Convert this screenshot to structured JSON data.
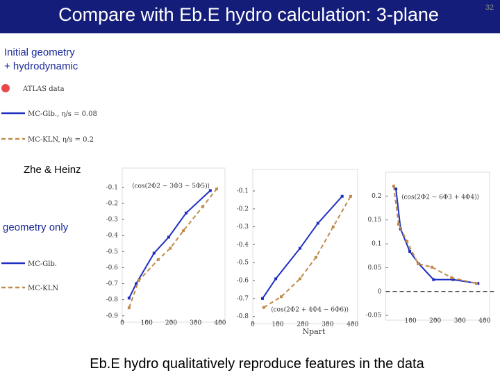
{
  "slide": {
    "title": "Compare with Eb.E hydro calculation: 3-plane",
    "page_number": "32",
    "hydro_label": [
      "Initial geometry",
      "+ hydrodynamic"
    ],
    "hydro_legend": [
      "ATLAS data",
      "MC-Glb., η/s = 0.08",
      "MC-KLN, η/s = 0.2"
    ],
    "reference": "Zhe & Heinz",
    "geometry_label": "geometry only",
    "geometry_legend": [
      "MC-Glb.",
      "MC-KLN"
    ],
    "x_label": "Npart",
    "conclusion": "Eb.E hydro qualitatively reproduce features in the data"
  },
  "chart_data": [
    {
      "type": "line",
      "annotation": "⟨cos(2Φ2 − 3Φ3 − 5Φ5)⟩",
      "xlim": [
        0,
        420
      ],
      "xticks": [
        0,
        100,
        200,
        300,
        400
      ],
      "ylim": [
        -0.94,
        0.02
      ],
      "yticks": [
        -0.1,
        -0.2,
        -0.3,
        -0.4,
        -0.5,
        -0.6,
        -0.7,
        -0.8,
        -0.9
      ],
      "series": [
        {
          "color": "#1f2fbf",
          "dashed": false,
          "x": [
            28,
            57,
            130,
            190,
            261,
            360
          ],
          "values": [
            -0.79,
            -0.7,
            -0.51,
            -0.41,
            -0.26,
            -0.12
          ]
        },
        {
          "color": "#c08a4a",
          "dashed": true,
          "x": [
            28,
            68,
            147,
            196,
            250,
            329,
            386
          ],
          "values": [
            -0.85,
            -0.68,
            -0.55,
            -0.48,
            -0.37,
            -0.22,
            -0.11
          ]
        }
      ]
    },
    {
      "type": "line",
      "annotation": "⟨cos(2Φ2 + 4Φ4 − 6Φ6)⟩",
      "xlim": [
        0,
        420
      ],
      "xticks": [
        0,
        100,
        200,
        300,
        400
      ],
      "ylim": [
        -0.84,
        0.02
      ],
      "yticks": [
        -0.1,
        -0.2,
        -0.3,
        -0.4,
        -0.5,
        -0.6,
        -0.7,
        -0.8
      ],
      "series": [
        {
          "color": "#1f2fbf",
          "dashed": false,
          "x": [
            39,
            92,
            189,
            261,
            358
          ],
          "values": [
            -0.7,
            -0.59,
            -0.42,
            -0.28,
            -0.13
          ]
        },
        {
          "color": "#c08a4a",
          "dashed": true,
          "x": [
            44,
            114,
            189,
            253,
            322,
            392
          ],
          "values": [
            -0.75,
            -0.69,
            -0.59,
            -0.47,
            -0.3,
            -0.13
          ]
        }
      ]
    },
    {
      "type": "line",
      "annotation": "⟨cos(2Φ2 − 6Φ3 + 4Φ4)⟩",
      "zero_line": true,
      "xlim": [
        0,
        420
      ],
      "xticks": [
        100,
        200,
        300,
        400
      ],
      "ylim": [
        -0.06,
        0.25
      ],
      "yticks": [
        0.2,
        0.15,
        0.1,
        0.05,
        0,
        -0.05
      ],
      "series": [
        {
          "color": "#1f2fbf",
          "dashed": false,
          "x": [
            41,
            60,
            97,
            134,
            193,
            272,
            373
          ],
          "values": [
            0.215,
            0.131,
            0.084,
            0.058,
            0.025,
            0.025,
            0.017
          ]
        },
        {
          "color": "#c08a4a",
          "dashed": true,
          "x": [
            32,
            52,
            86,
            131,
            187,
            266,
            367
          ],
          "values": [
            0.221,
            0.141,
            0.105,
            0.058,
            0.051,
            0.029,
            0.017
          ]
        }
      ]
    }
  ]
}
